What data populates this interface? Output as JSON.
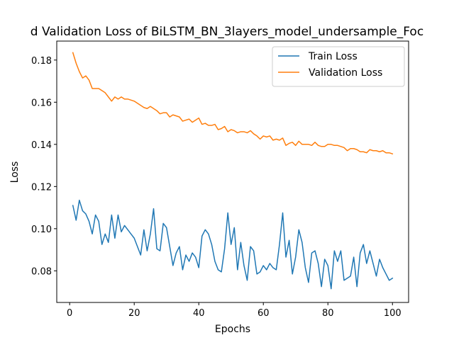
{
  "chart_data": {
    "type": "line",
    "title": "d Validation Loss of BiLSTM_BN_3layers_model_undersample_Foc",
    "xlabel": "Epochs",
    "ylabel": "Loss",
    "xlim": [
      -4,
      105
    ],
    "ylim": [
      0.065,
      0.189
    ],
    "xticks": [
      0,
      20,
      40,
      60,
      80,
      100
    ],
    "xtick_labels": [
      "0",
      "20",
      "40",
      "60",
      "80",
      "100"
    ],
    "yticks": [
      0.08,
      0.1,
      0.12,
      0.14,
      0.16,
      0.18
    ],
    "ytick_labels": [
      "0.08",
      "0.10",
      "0.12",
      "0.14",
      "0.16",
      "0.18"
    ],
    "grid": false,
    "legend": "top-right",
    "x": [
      1,
      2,
      3,
      4,
      5,
      6,
      7,
      8,
      9,
      10,
      11,
      12,
      13,
      14,
      15,
      16,
      17,
      18,
      19,
      20,
      21,
      22,
      23,
      24,
      25,
      26,
      27,
      28,
      29,
      30,
      31,
      32,
      33,
      34,
      35,
      36,
      37,
      38,
      39,
      40,
      41,
      42,
      43,
      44,
      45,
      46,
      47,
      48,
      49,
      50,
      51,
      52,
      53,
      54,
      55,
      56,
      57,
      58,
      59,
      60,
      61,
      62,
      63,
      64,
      65,
      66,
      67,
      68,
      69,
      70,
      71,
      72,
      73,
      74,
      75,
      76,
      77,
      78,
      79,
      80,
      81,
      82,
      83,
      84,
      85,
      86,
      87,
      88,
      89,
      90,
      91,
      92,
      93,
      94,
      95,
      96,
      97,
      98,
      99,
      100
    ],
    "series": [
      {
        "name": "Train Loss",
        "color": "#1f77b4",
        "values": [
          0.111,
          0.104,
          0.1135,
          0.1085,
          0.107,
          0.1035,
          0.0975,
          0.1065,
          0.1035,
          0.0925,
          0.0975,
          0.0935,
          0.1065,
          0.0955,
          0.1065,
          0.0985,
          0.1015,
          0.0995,
          0.0975,
          0.0955,
          0.0915,
          0.0875,
          0.0995,
          0.0895,
          0.0975,
          0.1095,
          0.0905,
          0.0895,
          0.1025,
          0.1005,
          0.0915,
          0.0825,
          0.0885,
          0.0915,
          0.0805,
          0.0875,
          0.0845,
          0.0885,
          0.0865,
          0.0815,
          0.0965,
          0.0995,
          0.0975,
          0.0925,
          0.0845,
          0.0805,
          0.0795,
          0.0905,
          0.1075,
          0.0925,
          0.1005,
          0.0805,
          0.0935,
          0.0825,
          0.0755,
          0.0915,
          0.0895,
          0.0785,
          0.0795,
          0.0825,
          0.0805,
          0.0835,
          0.0815,
          0.0805,
          0.0925,
          0.1075,
          0.0865,
          0.0945,
          0.0785,
          0.0865,
          0.0995,
          0.0935,
          0.0815,
          0.0745,
          0.0885,
          0.0895,
          0.0835,
          0.0725,
          0.0855,
          0.0825,
          0.0715,
          0.0895,
          0.0845,
          0.0895,
          0.0755,
          0.0765,
          0.0775,
          0.0865,
          0.0725,
          0.0885,
          0.0925,
          0.0835,
          0.0895,
          0.0835,
          0.0775,
          0.0855,
          0.0815,
          0.0785,
          0.0755,
          0.0765
        ]
      },
      {
        "name": "Validation Loss",
        "color": "#ff7f0e",
        "values": [
          0.1835,
          0.1785,
          0.1745,
          0.1715,
          0.1725,
          0.1705,
          0.1665,
          0.1665,
          0.1665,
          0.1655,
          0.1645,
          0.1625,
          0.1605,
          0.1625,
          0.1615,
          0.1625,
          0.1615,
          0.1615,
          0.161,
          0.1605,
          0.1595,
          0.1585,
          0.1575,
          0.157,
          0.158,
          0.157,
          0.156,
          0.1545,
          0.155,
          0.155,
          0.153,
          0.154,
          0.1535,
          0.153,
          0.151,
          0.1515,
          0.152,
          0.1505,
          0.1515,
          0.1525,
          0.1495,
          0.15,
          0.149,
          0.149,
          0.1495,
          0.147,
          0.1475,
          0.1485,
          0.146,
          0.147,
          0.1465,
          0.1455,
          0.146,
          0.146,
          0.1455,
          0.1465,
          0.145,
          0.144,
          0.1425,
          0.144,
          0.1435,
          0.144,
          0.142,
          0.1425,
          0.142,
          0.143,
          0.1395,
          0.1405,
          0.141,
          0.1395,
          0.1415,
          0.14,
          0.14,
          0.14,
          0.1395,
          0.141,
          0.1395,
          0.139,
          0.139,
          0.14,
          0.14,
          0.1395,
          0.1395,
          0.139,
          0.1385,
          0.137,
          0.138,
          0.138,
          0.1375,
          0.1365,
          0.1365,
          0.136,
          0.1375,
          0.137,
          0.137,
          0.1365,
          0.137,
          0.136,
          0.136,
          0.1355
        ]
      }
    ]
  }
}
